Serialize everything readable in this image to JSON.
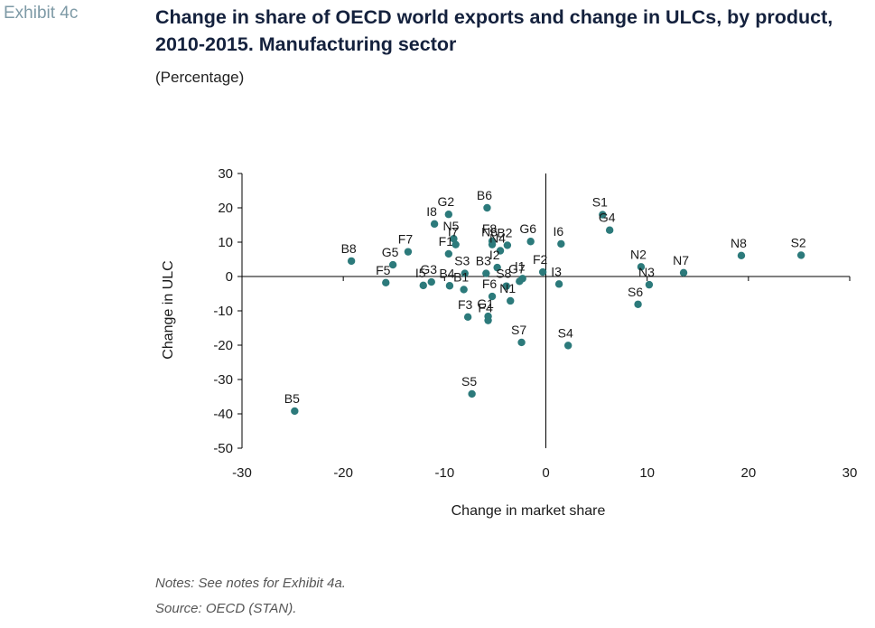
{
  "header": {
    "exhibit": "Exhibit 4c",
    "title": "Change in share of OECD world exports and change in ULCs, by product, 2010-2015. Manufacturing sector",
    "subtitle": "(Percentage)"
  },
  "footer": {
    "notes": "Notes: See notes for Exhibit 4a.",
    "source": "Source: OECD (STAN)."
  },
  "colors": {
    "point": "#2c7a7b",
    "axis": "#000000",
    "text": "#1a1a1a"
  },
  "chart_data": {
    "type": "scatter",
    "xlabel": "Change in market share",
    "ylabel": "Change in ULC",
    "xlim": [
      -30,
      30
    ],
    "ylim": [
      -50,
      30
    ],
    "xticks": [
      -30,
      -20,
      -10,
      0,
      10,
      20,
      30
    ],
    "yticks": [
      -50,
      -40,
      -30,
      -20,
      -10,
      0,
      10,
      20,
      30
    ],
    "grid": false,
    "points": [
      {
        "label": "B5",
        "x": -24.8,
        "y": -39.2
      },
      {
        "label": "B8",
        "x": -19.2,
        "y": 4.5
      },
      {
        "label": "F5",
        "x": -15.8,
        "y": -1.8
      },
      {
        "label": "G5",
        "x": -15.1,
        "y": 3.4
      },
      {
        "label": "F7",
        "x": -13.6,
        "y": 7.2
      },
      {
        "label": "I5",
        "x": -12.1,
        "y": -2.6
      },
      {
        "label": "G3",
        "x": -11.3,
        "y": -1.6
      },
      {
        "label": "I8",
        "x": -11.0,
        "y": 15.3
      },
      {
        "label": "G2",
        "x": -9.6,
        "y": 18.1
      },
      {
        "label": "N5",
        "x": -9.1,
        "y": 11.0
      },
      {
        "label": "F1",
        "x": -9.6,
        "y": 6.6
      },
      {
        "label": "I7",
        "x": -8.9,
        "y": 9.3
      },
      {
        "label": "B4",
        "x": -9.5,
        "y": -2.7
      },
      {
        "label": "S3",
        "x": -8.0,
        "y": 0.9
      },
      {
        "label": "B1",
        "x": -8.1,
        "y": -3.8
      },
      {
        "label": "F3",
        "x": -7.7,
        "y": -11.8
      },
      {
        "label": "G1",
        "x": -5.7,
        "y": -11.6
      },
      {
        "label": "F4",
        "x": -5.7,
        "y": -12.8
      },
      {
        "label": "B6",
        "x": -5.8,
        "y": 20.0
      },
      {
        "label": "F8",
        "x": -5.3,
        "y": 10.3
      },
      {
        "label": "N6",
        "x": -5.3,
        "y": 9.3
      },
      {
        "label": "B2",
        "x": -3.8,
        "y": 9.1
      },
      {
        "label": "N4",
        "x": -4.5,
        "y": 7.5
      },
      {
        "label": "B3",
        "x": -5.9,
        "y": 0.9
      },
      {
        "label": "I2",
        "x": -4.8,
        "y": 2.6
      },
      {
        "label": "S8",
        "x": -3.9,
        "y": -2.8
      },
      {
        "label": "F6",
        "x": -5.3,
        "y": -5.8
      },
      {
        "label": "N1",
        "x": -3.5,
        "y": -7.1
      },
      {
        "label": "G7",
        "x": -2.6,
        "y": -1.4
      },
      {
        "label": "I1",
        "x": -2.3,
        "y": -0.6
      },
      {
        "label": "F2",
        "x": -0.3,
        "y": 1.3
      },
      {
        "label": "G6",
        "x": -1.5,
        "y": 10.2
      },
      {
        "label": "I6",
        "x": 1.5,
        "y": 9.5
      },
      {
        "label": "I3",
        "x": 1.3,
        "y": -2.2
      },
      {
        "label": "S7",
        "x": -2.4,
        "y": -19.2
      },
      {
        "label": "S5",
        "x": -7.3,
        "y": -34.2
      },
      {
        "label": "S4",
        "x": 2.2,
        "y": -20.1
      },
      {
        "label": "S1",
        "x": 5.6,
        "y": 18.0
      },
      {
        "label": "G4",
        "x": 6.3,
        "y": 13.5
      },
      {
        "label": "N2",
        "x": 9.4,
        "y": 2.8
      },
      {
        "label": "N3",
        "x": 10.2,
        "y": -2.4
      },
      {
        "label": "S6",
        "x": 9.1,
        "y": -8.1
      },
      {
        "label": "N7",
        "x": 13.6,
        "y": 1.1
      },
      {
        "label": "N8",
        "x": 19.3,
        "y": 6.1
      },
      {
        "label": "S2",
        "x": 25.2,
        "y": 6.2
      }
    ]
  }
}
